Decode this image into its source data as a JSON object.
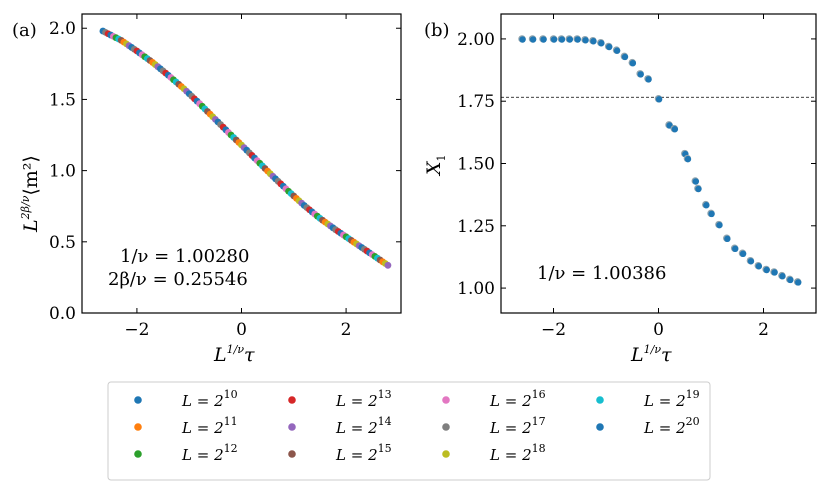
{
  "chart_data": [
    {
      "panel_label": "(a)",
      "type": "scatter",
      "title": "",
      "xlabel": {
        "base": "L",
        "sup": "1/ν",
        "tail": "τ"
      },
      "ylabel": {
        "base": "L",
        "sup": "2β/ν",
        "tail": "⟨m²⟩"
      },
      "xlim": [
        -3.05,
        3.05
      ],
      "ylim": [
        0.0,
        2.1
      ],
      "xticks": [
        -2,
        0,
        2
      ],
      "yticks": [
        0.0,
        0.5,
        1.0,
        1.5,
        2.0
      ],
      "xtick_labels": [
        "−2",
        "0",
        "2"
      ],
      "ytick_labels": [
        "0.0",
        "0.5",
        "1.0",
        "1.5",
        "2.0"
      ],
      "annotations": [
        "1/ν = 1.00280",
        "2β/ν = 0.25546"
      ],
      "curve": [
        [
          -2.65,
          1.98
        ],
        [
          -2.3,
          1.915
        ],
        [
          -2.0,
          1.84
        ],
        [
          -1.7,
          1.76
        ],
        [
          -1.4,
          1.67
        ],
        [
          -1.1,
          1.575
        ],
        [
          -0.8,
          1.47
        ],
        [
          -0.5,
          1.36
        ],
        [
          -0.2,
          1.25
        ],
        [
          0.0,
          1.18
        ],
        [
          0.3,
          1.07
        ],
        [
          0.6,
          0.96
        ],
        [
          0.9,
          0.855
        ],
        [
          1.2,
          0.755
        ],
        [
          1.5,
          0.665
        ],
        [
          1.8,
          0.585
        ],
        [
          2.1,
          0.51
        ],
        [
          2.4,
          0.435
        ],
        [
          2.6,
          0.385
        ],
        [
          2.8,
          0.335
        ]
      ],
      "x_range": [
        -2.65,
        2.8
      ]
    },
    {
      "panel_label": "(b)",
      "type": "scatter",
      "title": "",
      "xlabel": {
        "base": "L",
        "sup": "1/ν",
        "tail": "τ"
      },
      "ylabel": {
        "base": "X",
        "sub": "1"
      },
      "xlim": [
        -3.0,
        3.0
      ],
      "ylim": [
        0.9,
        2.1
      ],
      "xticks": [
        -2,
        0,
        2
      ],
      "yticks": [
        1.0,
        1.25,
        1.5,
        1.75,
        2.0
      ],
      "xtick_labels": [
        "−2",
        "0",
        "2"
      ],
      "ytick_labels": [
        "1.00",
        "1.25",
        "1.50",
        "1.75",
        "2.00"
      ],
      "hline": 1.766,
      "annotations": [
        "1/ν = 1.00386"
      ],
      "points": [
        [
          -2.6,
          2.0
        ],
        [
          -2.4,
          2.0
        ],
        [
          -2.2,
          2.0
        ],
        [
          -2.0,
          2.0
        ],
        [
          -1.85,
          2.0
        ],
        [
          -1.7,
          2.0
        ],
        [
          -1.55,
          2.0
        ],
        [
          -1.4,
          1.997
        ],
        [
          -1.25,
          1.993
        ],
        [
          -1.1,
          1.985
        ],
        [
          -0.95,
          1.97
        ],
        [
          -0.8,
          1.955
        ],
        [
          -0.65,
          1.93
        ],
        [
          -0.5,
          1.905
        ],
        [
          -0.35,
          1.86
        ],
        [
          -0.2,
          1.84
        ],
        [
          0.0,
          1.76
        ],
        [
          0.2,
          1.655
        ],
        [
          0.3,
          1.64
        ],
        [
          0.5,
          1.54
        ],
        [
          0.55,
          1.52
        ],
        [
          0.7,
          1.43
        ],
        [
          0.75,
          1.4
        ],
        [
          0.9,
          1.335
        ],
        [
          1.0,
          1.3
        ],
        [
          1.15,
          1.255
        ],
        [
          1.3,
          1.2
        ],
        [
          1.45,
          1.16
        ],
        [
          1.6,
          1.14
        ],
        [
          1.75,
          1.11
        ],
        [
          1.9,
          1.09
        ],
        [
          2.05,
          1.075
        ],
        [
          2.2,
          1.065
        ],
        [
          2.35,
          1.05
        ],
        [
          2.5,
          1.035
        ],
        [
          2.65,
          1.025
        ]
      ]
    }
  ],
  "legend": {
    "columns": 4,
    "entries": [
      {
        "base": "L = 2",
        "exp": "10",
        "color": "#1f77b4"
      },
      {
        "base": "L = 2",
        "exp": "11",
        "color": "#ff7f0e"
      },
      {
        "base": "L = 2",
        "exp": "12",
        "color": "#2ca02c"
      },
      {
        "base": "L = 2",
        "exp": "13",
        "color": "#d62728"
      },
      {
        "base": "L = 2",
        "exp": "14",
        "color": "#9467bd"
      },
      {
        "base": "L = 2",
        "exp": "15",
        "color": "#8c564b"
      },
      {
        "base": "L = 2",
        "exp": "16",
        "color": "#e377c2"
      },
      {
        "base": "L = 2",
        "exp": "17",
        "color": "#7f7f7f"
      },
      {
        "base": "L = 2",
        "exp": "18",
        "color": "#bcbd22"
      },
      {
        "base": "L = 2",
        "exp": "19",
        "color": "#17becf"
      },
      {
        "base": "L = 2",
        "exp": "20",
        "color": "#1f77b4"
      }
    ]
  }
}
